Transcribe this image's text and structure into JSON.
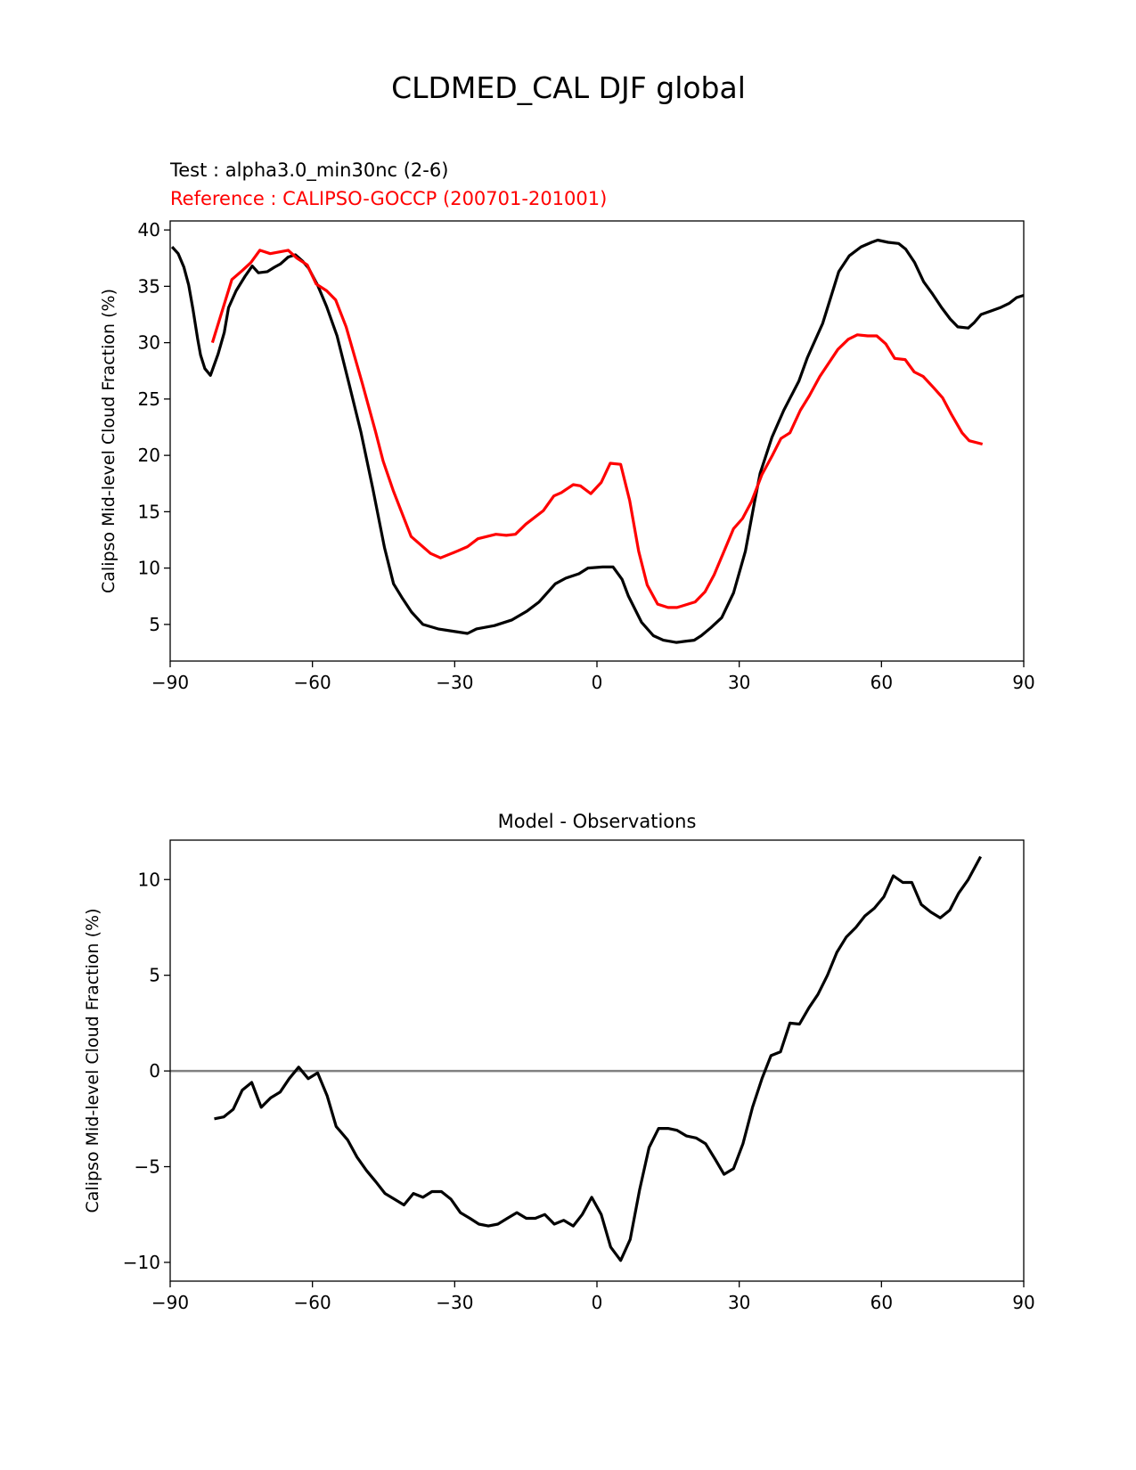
{
  "chart_data": [
    {
      "type": "line",
      "title": "CLDMED_CAL DJF global",
      "subtitle_test": "Test : alpha3.0_min30nc (2-6)",
      "subtitle_ref": "Reference : CALIPSO-GOCCP (200701-201001)",
      "xlabel": "",
      "ylabel": "Calipso Mid-level Cloud Fraction (%)",
      "xlim": [
        -90,
        90
      ],
      "ylim": [
        1.75,
        40.8
      ],
      "xticks": [
        -90,
        -60,
        -30,
        0,
        30,
        60,
        90
      ],
      "xtick_labels": [
        "−90",
        "−60",
        "−30",
        "0",
        "30",
        "60",
        "90"
      ],
      "yticks": [
        5,
        10,
        15,
        20,
        25,
        30,
        35,
        40
      ],
      "ytick_labels": [
        "5",
        "10",
        "15",
        "20",
        "25",
        "30",
        "35",
        "40"
      ],
      "grid": false,
      "series": [
        {
          "name": "Test",
          "color": "#000000",
          "x": [
            -89.6,
            -88.3,
            -87.1,
            -86.1,
            -85.2,
            -84.2,
            -83.6,
            -82.7,
            -81.5,
            -79.9,
            -78.6,
            -77.7,
            -76.1,
            -74.2,
            -72.7,
            -71.4,
            -69.5,
            -68.0,
            -66.7,
            -65.1,
            -63.6,
            -62.0,
            -60.8,
            -58.9,
            -57.0,
            -54.8,
            -52.3,
            -49.8,
            -47.3,
            -44.8,
            -42.9,
            -41.0,
            -39.1,
            -36.7,
            -33.5,
            -30.4,
            -27.3,
            -25.4,
            -21.6,
            -17.9,
            -14.7,
            -12.2,
            -8.8,
            -6.6,
            -3.8,
            -1.9,
            1.2,
            3.4,
            5.3,
            6.6,
            9.4,
            11.9,
            14.0,
            16.7,
            18.5,
            20.5,
            22.0,
            24.0,
            26.3,
            28.8,
            31.3,
            33.2,
            34.4,
            36.9,
            39.4,
            42.6,
            44.4,
            47.6,
            51.0,
            53.2,
            55.7,
            57.9,
            59.2,
            61.4,
            63.6,
            65.1,
            67.0,
            68.9,
            70.8,
            72.7,
            74.5,
            76.1,
            78.3,
            79.6,
            81.0,
            83.0,
            85.0,
            87.0,
            88.5,
            90.0
          ],
          "y": [
            38.5,
            37.9,
            36.7,
            35.1,
            33.0,
            30.3,
            28.9,
            27.7,
            27.1,
            29.0,
            30.9,
            33.1,
            34.6,
            35.9,
            36.8,
            36.2,
            36.3,
            36.7,
            37.0,
            37.6,
            37.8,
            37.2,
            36.6,
            35.1,
            33.2,
            30.6,
            26.4,
            22.1,
            17.1,
            11.8,
            8.6,
            7.3,
            6.1,
            5.0,
            4.6,
            4.4,
            4.2,
            4.6,
            4.9,
            5.4,
            6.2,
            7.0,
            8.6,
            9.1,
            9.5,
            10.0,
            10.1,
            10.1,
            9.0,
            7.55,
            5.2,
            4.0,
            3.6,
            3.4,
            3.5,
            3.6,
            4.0,
            4.7,
            5.6,
            7.8,
            11.5,
            15.8,
            18.4,
            21.6,
            24.0,
            26.6,
            28.7,
            31.7,
            36.3,
            37.7,
            38.5,
            38.9,
            39.1,
            38.9,
            38.8,
            38.3,
            37.1,
            35.4,
            34.3,
            33.1,
            32.1,
            31.4,
            31.3,
            31.8,
            32.5,
            32.8,
            33.1,
            33.5,
            34.0,
            34.2
          ]
        },
        {
          "name": "Reference",
          "color": "#ff0000",
          "x": [
            -81.1,
            -77.0,
            -74.8,
            -73.0,
            -71.1,
            -68.9,
            -65.1,
            -63.3,
            -61.1,
            -59.2,
            -57.0,
            -55.1,
            -52.9,
            -49.5,
            -46.7,
            -45.1,
            -42.9,
            -39.2,
            -35.1,
            -33.0,
            -29.5,
            -27.3,
            -25.1,
            -21.3,
            -19.1,
            -17.2,
            -15.0,
            -11.3,
            -9.1,
            -7.5,
            -5.0,
            -3.5,
            -1.3,
            0.9,
            2.8,
            5.0,
            6.9,
            8.8,
            10.6,
            12.8,
            15.0,
            16.9,
            20.7,
            22.8,
            24.7,
            26.6,
            28.8,
            30.7,
            32.6,
            34.8,
            37.0,
            38.8,
            40.7,
            42.9,
            44.8,
            47.0,
            50.8,
            53.0,
            54.9,
            57.1,
            59.0,
            60.9,
            62.8,
            65.0,
            66.9,
            68.8,
            71.0,
            72.9,
            74.8,
            77.0,
            78.5,
            81.3
          ],
          "y": [
            30.0,
            35.6,
            36.4,
            37.1,
            38.2,
            37.9,
            38.2,
            37.5,
            36.9,
            35.2,
            34.6,
            33.8,
            31.4,
            26.4,
            22.1,
            19.5,
            16.8,
            12.8,
            11.3,
            10.9,
            11.5,
            11.9,
            12.6,
            13.0,
            12.9,
            13.0,
            13.9,
            15.1,
            16.4,
            16.7,
            17.4,
            17.3,
            16.6,
            17.6,
            19.3,
            19.2,
            16.0,
            11.5,
            8.5,
            6.8,
            6.5,
            6.5,
            7.0,
            7.9,
            9.4,
            11.3,
            13.5,
            14.4,
            15.9,
            18.3,
            20.0,
            21.5,
            22.0,
            24.0,
            25.3,
            27.0,
            29.4,
            30.3,
            30.7,
            30.6,
            30.6,
            29.9,
            28.6,
            28.5,
            27.4,
            27.0,
            26.0,
            25.1,
            23.6,
            22.0,
            21.3,
            21.0
          ]
        }
      ]
    },
    {
      "type": "line",
      "title": "Model - Observations",
      "xlabel": "",
      "ylabel": "Calipso Mid-level Cloud Fraction (%)",
      "xlim": [
        -90,
        90
      ],
      "ylim": [
        -10.98,
        12.06
      ],
      "xticks": [
        -90,
        -60,
        -30,
        0,
        30,
        60,
        90
      ],
      "xtick_labels": [
        "−90",
        "−60",
        "−30",
        "0",
        "30",
        "60",
        "90"
      ],
      "yticks": [
        -10,
        -5,
        0,
        5,
        10
      ],
      "ytick_labels": [
        "−10",
        "−5",
        "0",
        "5",
        "10"
      ],
      "grid": false,
      "zero_line_color": "#808080",
      "series": [
        {
          "name": "Model - Observations",
          "color": "#000000",
          "x": [
            -80.7,
            -78.7,
            -76.7,
            -74.8,
            -72.8,
            -70.8,
            -68.8,
            -66.8,
            -64.9,
            -62.9,
            -60.9,
            -58.9,
            -56.9,
            -55.0,
            -52.6,
            -50.6,
            -48.6,
            -46.6,
            -44.7,
            -42.7,
            -40.7,
            -38.7,
            -36.7,
            -34.8,
            -32.8,
            -30.8,
            -28.8,
            -26.8,
            -24.9,
            -22.9,
            -20.9,
            -18.9,
            -16.9,
            -14.9,
            -13.0,
            -11.0,
            -9.0,
            -7.0,
            -5.0,
            -3.1,
            -1.1,
            0.9,
            2.9,
            5.0,
            7.0,
            9.0,
            11.0,
            13.0,
            15.0,
            16.9,
            18.9,
            20.9,
            22.9,
            24.9,
            26.8,
            28.8,
            30.8,
            32.8,
            34.8,
            36.7,
            38.7,
            40.7,
            42.7,
            44.7,
            46.6,
            48.6,
            50.6,
            52.6,
            54.6,
            56.5,
            58.5,
            60.5,
            62.5,
            64.5,
            66.4,
            68.4,
            70.4,
            72.4,
            74.4,
            76.3,
            78.3,
            80.9
          ],
          "y": [
            -2.5,
            -2.4,
            -2.0,
            -1.0,
            -0.6,
            -1.9,
            -1.4,
            -1.1,
            -0.4,
            0.2,
            -0.4,
            -0.1,
            -1.3,
            -2.9,
            -3.6,
            -4.5,
            -5.2,
            -5.8,
            -6.4,
            -6.7,
            -7.0,
            -6.4,
            -6.6,
            -6.3,
            -6.3,
            -6.7,
            -7.4,
            -7.7,
            -8.0,
            -8.1,
            -8.0,
            -7.7,
            -7.4,
            -7.7,
            -7.7,
            -7.5,
            -8.0,
            -7.8,
            -8.1,
            -7.5,
            -6.6,
            -7.5,
            -9.2,
            -9.9,
            -8.8,
            -6.2,
            -4.0,
            -3.0,
            -3.0,
            -3.1,
            -3.4,
            -3.5,
            -3.8,
            -4.6,
            -5.4,
            -5.1,
            -3.8,
            -1.9,
            -0.4,
            0.8,
            1.0,
            2.5,
            2.45,
            3.3,
            4.0,
            5.0,
            6.2,
            7.0,
            7.5,
            8.1,
            8.5,
            9.1,
            10.2,
            9.85,
            9.85,
            8.7,
            8.3,
            8.0,
            8.4,
            9.3,
            10.0,
            11.2
          ]
        }
      ]
    }
  ]
}
